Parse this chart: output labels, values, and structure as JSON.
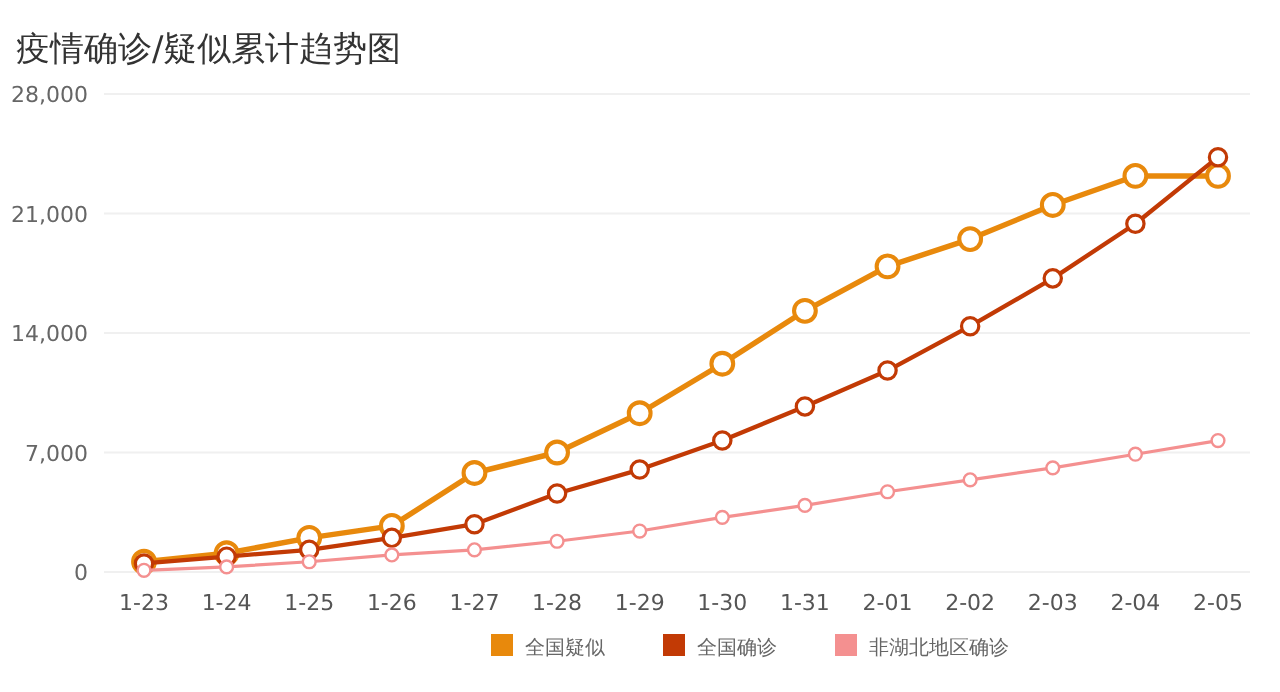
{
  "chart_data": {
    "type": "line",
    "title": "疫情确诊/疑似累计趋势图",
    "categories": [
      "1-23",
      "1-24",
      "1-25",
      "1-26",
      "1-27",
      "1-28",
      "1-29",
      "1-30",
      "1-31",
      "2-01",
      "2-02",
      "2-03",
      "2-04",
      "2-05"
    ],
    "series": [
      {
        "name": "全国疑似",
        "color": "#e8890c",
        "values": [
          600,
          1100,
          2000,
          2700,
          5800,
          7000,
          9300,
          12200,
          15300,
          17900,
          19500,
          21500,
          23200,
          23200
        ]
      },
      {
        "name": "全国确诊",
        "color": "#c23a05",
        "values": [
          500,
          900,
          1300,
          2000,
          2800,
          4600,
          6000,
          7700,
          9700,
          11800,
          14400,
          17200,
          20400,
          24300
        ]
      },
      {
        "name": "非湖北地区确诊",
        "color": "#f49090",
        "values": [
          100,
          300,
          600,
          1000,
          1300,
          1800,
          2400,
          3200,
          3900,
          4700,
          5400,
          6100,
          6900,
          7700
        ]
      }
    ],
    "ylim": [
      0,
      28000
    ],
    "yticks": [
      0,
      {
        "value": 7000,
        "label": "7,000"
      },
      {
        "value": 14000,
        "label": "14,000"
      },
      {
        "value": 21000,
        "label": "21,000"
      },
      {
        "value": 28000,
        "label": "28,000"
      }
    ],
    "grid": "y",
    "legend": "bottom",
    "marker": "circle"
  }
}
